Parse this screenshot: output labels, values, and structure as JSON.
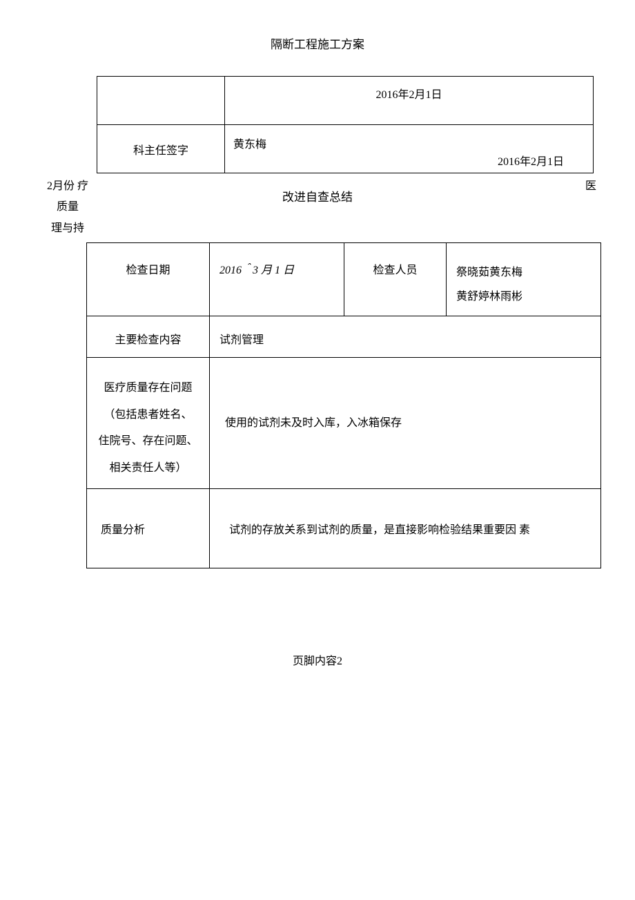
{
  "doc_title": "隔断工程施工方案",
  "table1": {
    "row1_date": "2016年2月1日",
    "row2_label": "科主任签字",
    "row2_name": "黄东梅",
    "row2_date": "2016年2月1日"
  },
  "side_text": {
    "left_line1": "2月份 疗",
    "left_line2": "质量",
    "left_line3": "理与持",
    "right": "医"
  },
  "section_title": "改进自查总结",
  "table2": {
    "r1": {
      "c1": "检查日期",
      "c2": "2016＾3 月 1 日",
      "c3": "检查人员",
      "c4_line1": "祭晓茹黄东梅",
      "c4_line2": "黄舒婷林雨彬"
    },
    "r2": {
      "c1": "主要检查内容",
      "c2": "试剂管理"
    },
    "r3": {
      "c1_line1": "医疗质量存在问题",
      "c1_line2": "（包括患者姓名、",
      "c1_line3": "住院号、存在问题、",
      "c1_line4": "相关责任人等）",
      "c2": "使用的试剂未及时入库，入冰箱保存"
    },
    "r4": {
      "c1": "质量分析",
      "c2": "试剂的存放关系到试剂的质量，是直接影响检验结果重要因  素"
    }
  },
  "footer": "页脚内容2"
}
